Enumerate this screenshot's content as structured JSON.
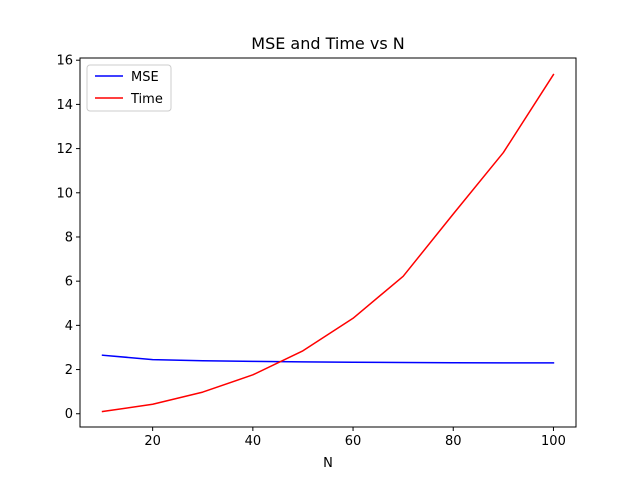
{
  "chart_data": {
    "type": "line",
    "title": "MSE and Time vs N",
    "xlabel": "N",
    "ylabel": "",
    "x": [
      10,
      20,
      30,
      40,
      50,
      60,
      70,
      80,
      90,
      100
    ],
    "xlim": [
      5.5,
      104.5
    ],
    "ylim": [
      -0.6,
      16.1
    ],
    "xticks": [
      20,
      40,
      60,
      80,
      100
    ],
    "yticks": [
      0,
      2,
      4,
      6,
      8,
      10,
      12,
      14,
      16
    ],
    "grid": false,
    "legend_position": "upper left",
    "series": [
      {
        "name": "MSE",
        "color": "#0000ff",
        "values": [
          2.65,
          2.45,
          2.4,
          2.37,
          2.35,
          2.33,
          2.32,
          2.31,
          2.3,
          2.3
        ]
      },
      {
        "name": "Time",
        "color": "#ff0000",
        "values": [
          0.1,
          0.43,
          0.98,
          1.76,
          2.85,
          4.32,
          6.22,
          9.04,
          11.82,
          15.35
        ]
      }
    ]
  }
}
